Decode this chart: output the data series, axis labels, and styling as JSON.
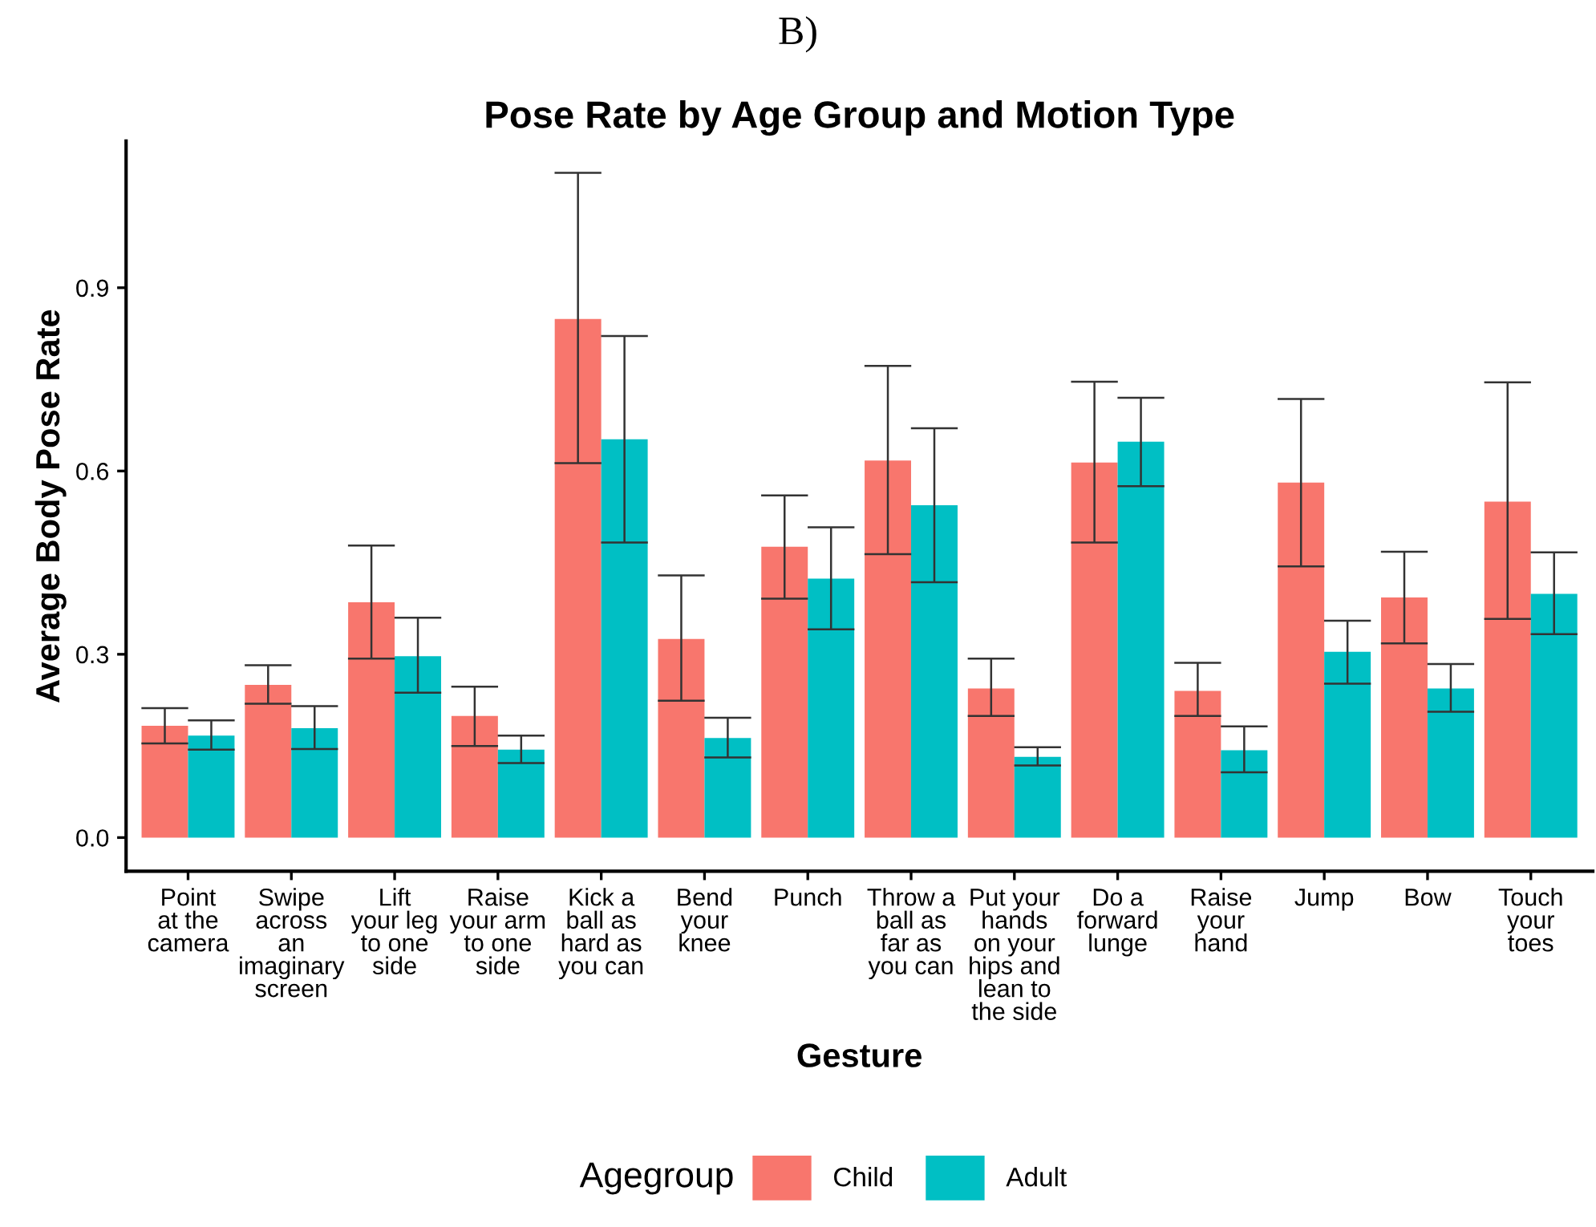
{
  "chart_data": {
    "type": "bar",
    "title": "Pose Rate by Age Group and Motion Type",
    "xlabel": "Gesture",
    "ylabel": "Average Body Pose Rate",
    "legend_title": "Agegroup",
    "annotations": [
      "B)"
    ],
    "categories": [
      "Point\nat the\ncamera",
      "Swipe\nacross\nan\nimaginary\nscreen",
      "Lift\nyour leg\nto one\nside",
      "Raise\nyour arm\nto one\nside",
      "Kick a\nball as\nhard as\nyou can",
      "Bend\nyour\nknee",
      "Punch",
      "Throw a\nball as\nfar as\nyou can",
      "Put your\nhands\non your\nhips and\nlean to\nthe side",
      "Do a\nforward\nlunge",
      "Raise\nyour\nhand",
      "Jump",
      "Bow",
      "Touch\nyour\ntoes"
    ],
    "series": [
      {
        "name": "Child",
        "color": "#f8766d",
        "values": [
          0.183,
          0.25,
          0.385,
          0.199,
          0.849,
          0.325,
          0.476,
          0.617,
          0.244,
          0.614,
          0.24,
          0.581,
          0.393,
          0.55
        ],
        "errors": [
          [
            0.154,
            0.212
          ],
          [
            0.219,
            0.282
          ],
          [
            0.293,
            0.478
          ],
          [
            0.15,
            0.247
          ],
          [
            0.613,
            1.088
          ],
          [
            0.224,
            0.429
          ],
          [
            0.391,
            0.56
          ],
          [
            0.464,
            0.772
          ],
          [
            0.199,
            0.293
          ],
          [
            0.483,
            0.746
          ],
          [
            0.199,
            0.286
          ],
          [
            0.444,
            0.718
          ],
          [
            0.318,
            0.468
          ],
          [
            0.358,
            0.745
          ]
        ]
      },
      {
        "name": "Adult",
        "color": "#00bfc4",
        "values": [
          0.167,
          0.179,
          0.297,
          0.144,
          0.652,
          0.163,
          0.424,
          0.544,
          0.132,
          0.648,
          0.143,
          0.304,
          0.244,
          0.399
        ],
        "errors": [
          [
            0.144,
            0.192
          ],
          [
            0.145,
            0.215
          ],
          [
            0.237,
            0.36
          ],
          [
            0.122,
            0.167
          ],
          [
            0.483,
            0.821
          ],
          [
            0.131,
            0.196
          ],
          [
            0.341,
            0.508
          ],
          [
            0.418,
            0.67
          ],
          [
            0.118,
            0.148
          ],
          [
            0.575,
            0.72
          ],
          [
            0.107,
            0.182
          ],
          [
            0.252,
            0.355
          ],
          [
            0.206,
            0.284
          ],
          [
            0.333,
            0.467
          ]
        ]
      }
    ],
    "ylim": [
      -0.055,
      1.14
    ],
    "yticks": [
      {
        "value": 0,
        "label": "0.0"
      },
      {
        "value": 0.3,
        "label": "0.3"
      },
      {
        "value": 0.6,
        "label": "0.6"
      },
      {
        "value": 0.9,
        "label": "0.9"
      }
    ],
    "grid": false,
    "legend": "bottom"
  }
}
